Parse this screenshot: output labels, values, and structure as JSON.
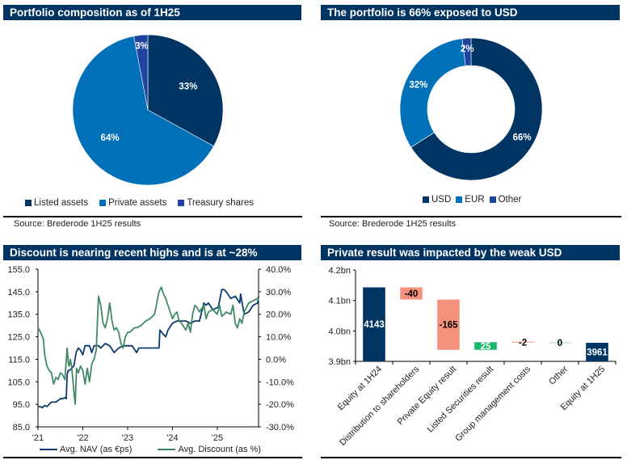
{
  "colors": {
    "header_bg": "#003462",
    "navy": "#003462",
    "blue": "#0070b8",
    "royal": "#1f44a0",
    "nav_line": "#0b3a6e",
    "discount_line": "#3f8a64",
    "negative": "#f4917c",
    "positive": "#17b86a",
    "neg_small_line": "#f4b8ab",
    "zero_line": "#bfe6d1"
  },
  "panels": {
    "composition": {
      "title": "Portfolio composition as of 1H25",
      "source": "Source: Brederode 1H25 results"
    },
    "currency": {
      "title": "The portfolio is 66% exposed to USD",
      "source": "Source: Brederode 1H25 results"
    },
    "discount": {
      "title": "Discount is nearing recent highs and is at ~28%"
    },
    "waterfall": {
      "title": "Private result was impacted by the weak USD"
    }
  },
  "chart_data": [
    {
      "id": "composition",
      "type": "pie",
      "title": "Portfolio composition as of 1H25",
      "slices": [
        {
          "name": "Listed assets",
          "value": 33,
          "label": "33%",
          "color": "#003462"
        },
        {
          "name": "Private assets",
          "value": 64,
          "label": "64%",
          "color": "#0070b8"
        },
        {
          "name": "Treasury shares",
          "value": 3,
          "label": "3%",
          "color": "#1f44a0"
        }
      ],
      "legend": [
        "Listed assets",
        "Private assets",
        "Treasury shares"
      ],
      "legend_position": "bottom"
    },
    {
      "id": "currency",
      "type": "pie",
      "subtype": "donut",
      "title": "The portfolio is 66% exposed to USD",
      "slices": [
        {
          "name": "USD",
          "value": 66,
          "label": "66%",
          "color": "#003462"
        },
        {
          "name": "EUR",
          "value": 32,
          "label": "32%",
          "color": "#0070b8"
        },
        {
          "name": "Other",
          "value": 2,
          "label": "2%",
          "color": "#1f44a0"
        }
      ],
      "legend": [
        "USD",
        "EUR",
        "Other"
      ],
      "legend_position": "bottom"
    },
    {
      "id": "discount",
      "type": "line",
      "title": "Discount is nearing recent highs and is at ~28%",
      "x_ticks": [
        "'21",
        "'22",
        "'23",
        "'24",
        "'25"
      ],
      "x_range": [
        2021.0,
        2025.92
      ],
      "y_left": {
        "ticks": [
          "155.0",
          "145.0",
          "135.0",
          "125.0",
          "115.0",
          "105.0",
          "95.0",
          "85.0"
        ],
        "range": [
          85,
          155
        ]
      },
      "y_right": {
        "ticks": [
          "40.0%",
          "30.0%",
          "20.0%",
          "10.0%",
          "0.0%",
          "-10.0%",
          "-20.0%",
          "-30.0%"
        ],
        "range": [
          -30,
          40
        ]
      },
      "grid": false,
      "legend_position": "bottom",
      "series": [
        {
          "name": "Avg. NAV (as €ps)",
          "axis": "left",
          "color": "#0b3a6e",
          "x": [
            2021.0,
            2021.05,
            2021.1,
            2021.15,
            2021.2,
            2021.3,
            2021.4,
            2021.5,
            2021.55,
            2021.6,
            2021.63,
            2021.65,
            2021.67,
            2021.7,
            2021.75,
            2021.8,
            2021.85,
            2021.9,
            2021.95,
            2022.0,
            2022.05,
            2022.1,
            2022.15,
            2022.2,
            2022.25,
            2022.3,
            2022.35,
            2022.4,
            2022.5,
            2022.6,
            2022.7,
            2022.8,
            2022.9,
            2023.0,
            2023.1,
            2023.2,
            2023.25,
            2023.3,
            2023.4,
            2023.5,
            2023.6,
            2023.7,
            2023.72,
            2023.8,
            2023.85,
            2023.9,
            2024.0,
            2024.1,
            2024.2,
            2024.3,
            2024.4,
            2024.5,
            2024.52,
            2024.6,
            2024.7,
            2024.75,
            2024.8,
            2024.9,
            2025.0,
            2025.02,
            2025.1,
            2025.15,
            2025.2,
            2025.3,
            2025.4,
            2025.5,
            2025.52,
            2025.6,
            2025.7,
            2025.8,
            2025.9,
            2025.92
          ],
          "y": [
            94,
            94,
            93.5,
            94.5,
            94,
            96,
            96,
            97.5,
            97.5,
            98,
            97.5,
            108,
            110,
            110,
            111,
            112,
            118,
            120,
            119,
            117,
            121,
            121,
            121,
            118,
            121,
            121,
            121,
            120,
            122,
            121,
            118,
            120,
            121,
            121,
            121,
            118,
            120,
            120,
            120,
            120,
            120,
            120,
            128,
            126,
            125,
            128,
            131,
            132,
            132,
            132,
            131,
            132,
            132,
            132,
            140,
            139,
            140,
            137,
            138,
            138,
            146,
            146,
            145,
            142,
            143,
            140,
            144,
            135,
            136,
            139,
            140,
            143
          ]
        },
        {
          "name": "Avg. Discount (as %)",
          "axis": "right",
          "color": "#3f8a64",
          "x": [
            2021.0,
            2021.03,
            2021.08,
            2021.12,
            2021.15,
            2021.2,
            2021.25,
            2021.3,
            2021.35,
            2021.4,
            2021.45,
            2021.5,
            2021.55,
            2021.6,
            2021.65,
            2021.68,
            2021.7,
            2021.72,
            2021.75,
            2021.8,
            2021.83,
            2021.86,
            2021.9,
            2021.95,
            2022.0,
            2022.05,
            2022.1,
            2022.15,
            2022.2,
            2022.25,
            2022.3,
            2022.35,
            2022.4,
            2022.45,
            2022.5,
            2022.55,
            2022.6,
            2022.65,
            2022.7,
            2022.75,
            2022.8,
            2022.85,
            2022.9,
            2022.95,
            2023.0,
            2023.05,
            2023.1,
            2023.15,
            2023.2,
            2023.3,
            2023.4,
            2023.5,
            2023.6,
            2023.7,
            2023.75,
            2023.8,
            2023.85,
            2023.9,
            2023.95,
            2024.0,
            2024.05,
            2024.1,
            2024.15,
            2024.2,
            2024.3,
            2024.35,
            2024.4,
            2024.45,
            2024.5,
            2024.55,
            2024.6,
            2024.7,
            2024.75,
            2024.8,
            2024.9,
            2025.0,
            2025.05,
            2025.1,
            2025.15,
            2025.2,
            2025.3,
            2025.35,
            2025.4,
            2025.45,
            2025.5,
            2025.55,
            2025.6,
            2025.7,
            2025.8,
            2025.9,
            2025.92
          ],
          "y": [
            14,
            13,
            11,
            9,
            2,
            -3,
            -5,
            -6,
            -11,
            -8,
            -9,
            -6,
            -7,
            -9,
            5,
            -2,
            -3,
            0,
            -3,
            -14,
            -20,
            -4,
            -6,
            -3,
            -5,
            -11,
            -4,
            -10,
            -2,
            0,
            4,
            28,
            24,
            16,
            14,
            18,
            25,
            17,
            13,
            14,
            12,
            7,
            5,
            10,
            12,
            12,
            13,
            14,
            14,
            15,
            17,
            18,
            20,
            30,
            32,
            29,
            27,
            24,
            21,
            18,
            20,
            21,
            17,
            16,
            13,
            16,
            12,
            20,
            24,
            23,
            21,
            24,
            18,
            21,
            22,
            20,
            24,
            19,
            20,
            21,
            20,
            24,
            16,
            14,
            18,
            16,
            21,
            25,
            26,
            27,
            26
          ]
        }
      ]
    },
    {
      "id": "waterfall",
      "type": "bar",
      "subtype": "waterfall",
      "title": "Private result was impacted by the weak USD",
      "categories": [
        "Equity at 1H24",
        "Distribution to shareholders",
        "Private Equity result",
        "Listed Securities result",
        "Group management costs",
        "Other",
        "Equity at 1H25"
      ],
      "values": [
        4143,
        -40,
        -165,
        25,
        -2,
        0,
        3961
      ],
      "kinds": [
        "total",
        "delta",
        "delta",
        "delta",
        "delta",
        "delta",
        "total"
      ],
      "data_labels": [
        "4143",
        "-40",
        "-165",
        "25",
        "-2",
        "0",
        "3961"
      ],
      "y_ticks": [
        "4.2bn",
        "4.1bn",
        "4.0bn",
        "3.9bn"
      ],
      "ylim": [
        3900,
        4200
      ],
      "unit": "€m"
    }
  ]
}
